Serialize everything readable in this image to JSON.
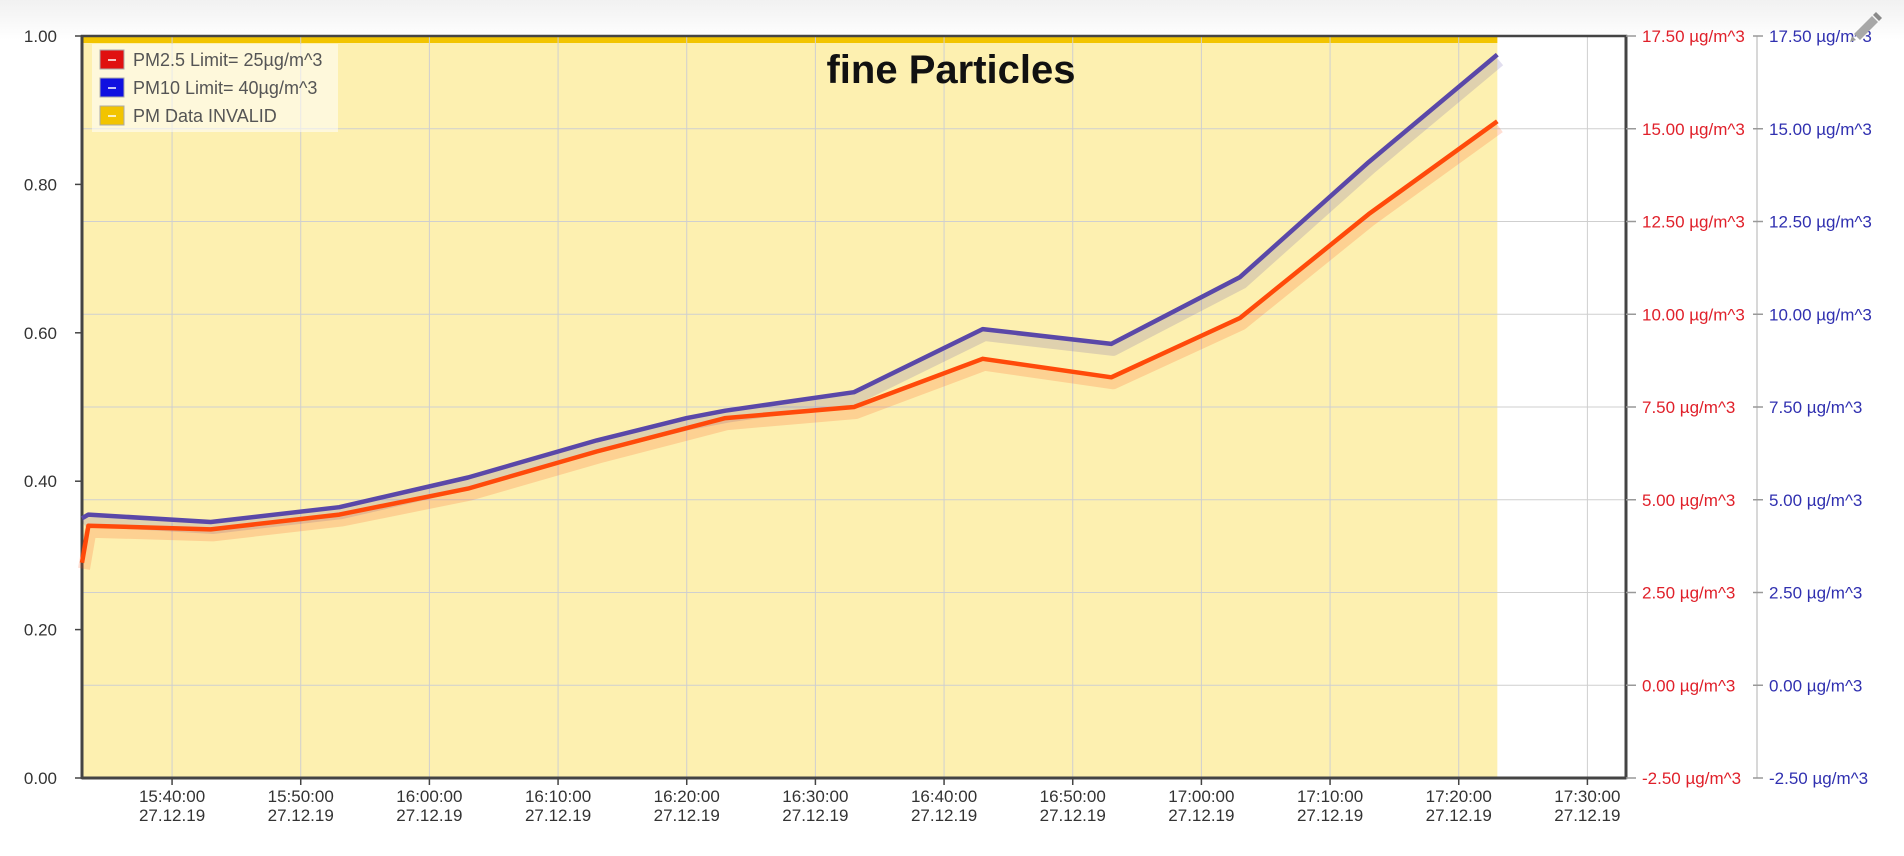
{
  "chart_data": {
    "type": "line",
    "title": "fine Particles",
    "legend": {
      "placement": "top-left",
      "entries": [
        {
          "label": "PM2.5 Limit= 25µg/m^3",
          "color": "#e01010",
          "marker": "–"
        },
        {
          "label": "PM10 Limit= 40µg/m^3",
          "color": "#1010e0",
          "marker": "–"
        },
        {
          "label": "PM Data INVALID",
          "color": "#f2c400",
          "marker": "–"
        }
      ]
    },
    "x_axis": {
      "type": "time",
      "range": [
        "27.12.19 15:33:00",
        "27.12.19 17:33:00"
      ],
      "ticks": [
        {
          "time": "15:40:00",
          "date": "27.12.19",
          "value": "27.12.19 15:40:00"
        },
        {
          "time": "15:50:00",
          "date": "27.12.19",
          "value": "27.12.19 15:50:00"
        },
        {
          "time": "16:00:00",
          "date": "27.12.19",
          "value": "27.12.19 16:00:00"
        },
        {
          "time": "16:10:00",
          "date": "27.12.19",
          "value": "27.12.19 16:10:00"
        },
        {
          "time": "16:20:00",
          "date": "27.12.19",
          "value": "27.12.19 16:20:00"
        },
        {
          "time": "16:30:00",
          "date": "27.12.19",
          "value": "27.12.19 16:30:00"
        },
        {
          "time": "16:40:00",
          "date": "27.12.19",
          "value": "27.12.19 16:40:00"
        },
        {
          "time": "16:50:00",
          "date": "27.12.19",
          "value": "27.12.19 16:50:00"
        },
        {
          "time": "17:00:00",
          "date": "27.12.19",
          "value": "27.12.19 17:00:00"
        },
        {
          "time": "17:10:00",
          "date": "27.12.19",
          "value": "27.12.19 17:10:00"
        },
        {
          "time": "17:20:00",
          "date": "27.12.19",
          "value": "27.12.19 17:20:00"
        },
        {
          "time": "17:30:00",
          "date": "27.12.19",
          "value": "27.12.19 17:30:00"
        }
      ]
    },
    "y_axis_left": {
      "range": [
        0,
        1
      ],
      "ticks": [
        "0.00",
        "0.20",
        "0.40",
        "0.60",
        "0.80",
        "1.00"
      ]
    },
    "y_axis_right_pm25": {
      "range": [
        -2.5,
        17.5
      ],
      "color": "#e0202a",
      "ticks": [
        "-2.50 µg/m^3",
        "0.00 µg/m^3",
        "2.50 µg/m^3",
        "5.00 µg/m^3",
        "7.50 µg/m^3",
        "10.00 µg/m^3",
        "12.50 µg/m^3",
        "15.00 µg/m^3",
        "17.50 µg/m^3"
      ]
    },
    "y_axis_right_pm10": {
      "range": [
        -2.5,
        17.5
      ],
      "color": "#3030b0",
      "ticks": [
        "-2.50 µg/m^3",
        "0.00 µg/m^3",
        "2.50 µg/m^3",
        "5.00 µg/m^3",
        "7.50 µg/m^3",
        "10.00 µg/m^3",
        "12.50 µg/m^3",
        "15.00 µg/m^3",
        "17.50 µg/m^3"
      ]
    },
    "grid": true,
    "invalid_band": {
      "label": "PM Data INVALID",
      "color": "#fdf0b0",
      "edge_color": "#f2c400",
      "from": "27.12.19 15:33:00",
      "to": "27.12.19 17:23:00",
      "value": 1.0
    },
    "series": [
      {
        "name": "PM10",
        "color": "#5a48a8",
        "axis": "y_axis_right_pm10",
        "points": [
          {
            "x": "27.12.19 15:33:00",
            "y": 4.5
          },
          {
            "x": "27.12.19 15:33:30",
            "y": 4.6
          },
          {
            "x": "27.12.19 15:43:00",
            "y": 4.4
          },
          {
            "x": "27.12.19 15:53:00",
            "y": 4.8
          },
          {
            "x": "27.12.19 16:03:00",
            "y": 5.6
          },
          {
            "x": "27.12.19 16:13:00",
            "y": 6.6
          },
          {
            "x": "27.12.19 16:20:00",
            "y": 7.2
          },
          {
            "x": "27.12.19 16:23:00",
            "y": 7.4
          },
          {
            "x": "27.12.19 16:33:00",
            "y": 7.9
          },
          {
            "x": "27.12.19 16:43:00",
            "y": 9.6
          },
          {
            "x": "27.12.19 16:53:00",
            "y": 9.2
          },
          {
            "x": "27.12.19 17:03:00",
            "y": 11.0
          },
          {
            "x": "27.12.19 17:13:00",
            "y": 14.1
          },
          {
            "x": "27.12.19 17:23:00",
            "y": 17.0
          }
        ]
      },
      {
        "name": "PM2.5",
        "color": "#ff4a0a",
        "axis": "y_axis_right_pm25",
        "points": [
          {
            "x": "27.12.19 15:33:00",
            "y": 3.3
          },
          {
            "x": "27.12.19 15:33:30",
            "y": 4.3
          },
          {
            "x": "27.12.19 15:43:00",
            "y": 4.2
          },
          {
            "x": "27.12.19 15:53:00",
            "y": 4.6
          },
          {
            "x": "27.12.19 16:03:00",
            "y": 5.3
          },
          {
            "x": "27.12.19 16:13:00",
            "y": 6.3
          },
          {
            "x": "27.12.19 16:23:00",
            "y": 7.2
          },
          {
            "x": "27.12.19 16:33:00",
            "y": 7.5
          },
          {
            "x": "27.12.19 16:43:00",
            "y": 8.8
          },
          {
            "x": "27.12.19 16:53:00",
            "y": 8.3
          },
          {
            "x": "27.12.19 17:03:00",
            "y": 9.9
          },
          {
            "x": "27.12.19 17:13:00",
            "y": 12.7
          },
          {
            "x": "27.12.19 17:23:00",
            "y": 15.2
          }
        ]
      }
    ]
  },
  "toolbar": {
    "edit_icon": "pencil-icon"
  }
}
